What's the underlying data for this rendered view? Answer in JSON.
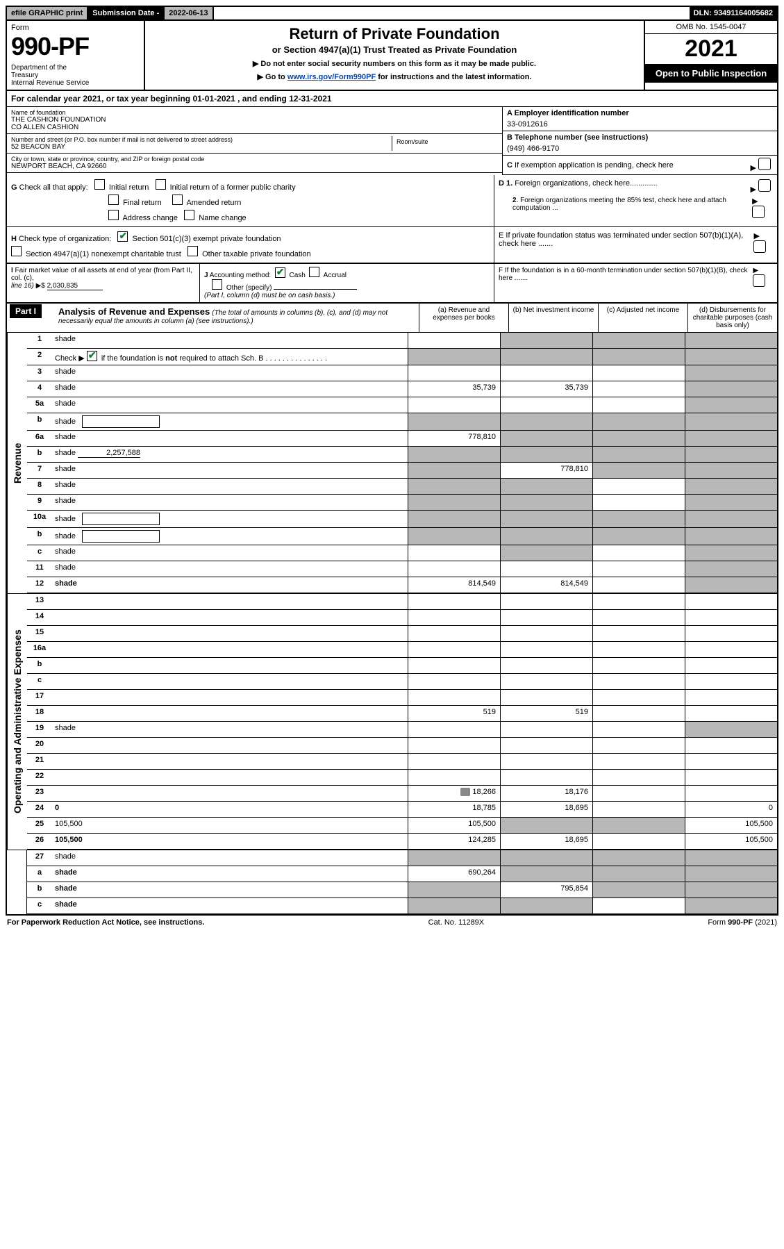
{
  "topbar": {
    "efile": "efile GRAPHIC print",
    "subdate_label": "Submission Date - ",
    "subdate_value": "2022-06-13",
    "dln": "DLN: 93491164005682"
  },
  "header": {
    "form_word": "Form",
    "form_num": "990-PF",
    "dept": "Department of the Treasury\nInternal Revenue Service",
    "title": "Return of Private Foundation",
    "subtitle": "or Section 4947(a)(1) Trust Treated as Private Foundation",
    "instr1": "▶ Do not enter social security numbers on this form as it may be made public.",
    "instr2_pre": "▶ Go to ",
    "instr2_link": "www.irs.gov/Form990PF",
    "instr2_post": " for instructions and the latest information.",
    "omb": "OMB No. 1545-0047",
    "year": "2021",
    "open": "Open to Public Inspection"
  },
  "calyear": {
    "text_pre": "For calendar year 2021, or tax year beginning ",
    "begin": "01-01-2021",
    "text_mid": " , and ending ",
    "end": "12-31-2021"
  },
  "info": {
    "name_label": "Name of foundation",
    "name_value": "THE CASHION FOUNDATION\nCO ALLEN CASHION",
    "addr_label": "Number and street (or P.O. box number if mail is not delivered to street address)",
    "addr_value": "52 BEACON BAY",
    "room_label": "Room/suite",
    "city_label": "City or town, state or province, country, and ZIP or foreign postal code",
    "city_value": "NEWPORT BEACH, CA  92660",
    "a_label": "A Employer identification number",
    "a_value": "33-0912616",
    "b_label": "B Telephone number (see instructions)",
    "b_value": "(949) 466-9170",
    "c_label": "C If exemption application is pending, check here",
    "d1_label": "D 1. Foreign organizations, check here",
    "d2_label": "2. Foreign organizations meeting the 85% test, check here and attach computation ...",
    "e_label": "E   If private foundation status was terminated under section 507(b)(1)(A), check here .......",
    "f_label": "F   If the foundation is in a 60-month termination under section 507(b)(1)(B), check here ......."
  },
  "checks": {
    "g_label": "G Check all that apply:",
    "g_opts": [
      "Initial return",
      "Initial return of a former public charity",
      "Final return",
      "Amended return",
      "Address change",
      "Name change"
    ],
    "h_label": "H Check type of organization:",
    "h_opt1": "Section 501(c)(3) exempt private foundation",
    "h_opt2": "Section 4947(a)(1) nonexempt charitable trust",
    "h_opt3": "Other taxable private foundation",
    "i_label": "I Fair market value of all assets at end of year (from Part II, col. (c), line 16) ▶$ ",
    "i_value": "2,030,835",
    "j_label": "J Accounting method:",
    "j_opt1": "Cash",
    "j_opt2": "Accrual",
    "j_opt3": "Other (specify)",
    "j_note": "(Part I, column (d) must be on cash basis.)"
  },
  "part1": {
    "badge": "Part I",
    "title": "Analysis of Revenue and Expenses",
    "note": "(The total of amounts in columns (b), (c), and (d) may not necessarily equal the amounts in column (a) (see instructions).)",
    "col_a": "(a)  Revenue and expenses per books",
    "col_b": "(b)  Net investment income",
    "col_c": "(c)  Adjusted net income",
    "col_d": "(d)  Disbursements for charitable purposes (cash basis only)"
  },
  "vtabs": {
    "revenue": "Revenue",
    "expenses": "Operating and Administrative Expenses"
  },
  "rows": [
    {
      "n": "1",
      "d": "shade",
      "a": "",
      "b": "shade",
      "c": "shade"
    },
    {
      "n": "2",
      "d": "shade",
      "a": "shade",
      "b": "shade",
      "c": "shade",
      "checked": true
    },
    {
      "n": "3",
      "d": "shade",
      "a": "",
      "b": "",
      "c": ""
    },
    {
      "n": "4",
      "d": "shade",
      "a": "35,739",
      "b": "35,739",
      "c": ""
    },
    {
      "n": "5a",
      "d": "shade",
      "a": "",
      "b": "",
      "c": ""
    },
    {
      "n": "b",
      "d": "shade",
      "a": "shade",
      "b": "shade",
      "c": "shade",
      "inlinebox": true
    },
    {
      "n": "6a",
      "d": "shade",
      "a": "778,810",
      "b": "shade",
      "c": "shade"
    },
    {
      "n": "b",
      "d": "shade",
      "a": "shade",
      "b": "shade",
      "c": "shade",
      "inlineval": "2,257,588"
    },
    {
      "n": "7",
      "d": "shade",
      "a": "shade",
      "b": "778,810",
      "c": "shade"
    },
    {
      "n": "8",
      "d": "shade",
      "a": "shade",
      "b": "shade",
      "c": ""
    },
    {
      "n": "9",
      "d": "shade",
      "a": "shade",
      "b": "shade",
      "c": ""
    },
    {
      "n": "10a",
      "d": "shade",
      "a": "shade",
      "b": "shade",
      "c": "shade",
      "inlinebox": true
    },
    {
      "n": "b",
      "d": "shade",
      "a": "shade",
      "b": "shade",
      "c": "shade",
      "inlinebox": true
    },
    {
      "n": "c",
      "d": "shade",
      "a": "",
      "b": "shade",
      "c": ""
    },
    {
      "n": "11",
      "d": "shade",
      "a": "",
      "b": "",
      "c": ""
    },
    {
      "n": "12",
      "d": "shade",
      "a": "814,549",
      "b": "814,549",
      "c": "",
      "bold": true
    }
  ],
  "exp_rows": [
    {
      "n": "13",
      "d": "",
      "a": "",
      "b": "",
      "c": ""
    },
    {
      "n": "14",
      "d": "",
      "a": "",
      "b": "",
      "c": ""
    },
    {
      "n": "15",
      "d": "",
      "a": "",
      "b": "",
      "c": ""
    },
    {
      "n": "16a",
      "d": "",
      "a": "",
      "b": "",
      "c": ""
    },
    {
      "n": "b",
      "d": "",
      "a": "",
      "b": "",
      "c": ""
    },
    {
      "n": "c",
      "d": "",
      "a": "",
      "b": "",
      "c": ""
    },
    {
      "n": "17",
      "d": "",
      "a": "",
      "b": "",
      "c": ""
    },
    {
      "n": "18",
      "d": "",
      "a": "519",
      "b": "519",
      "c": ""
    },
    {
      "n": "19",
      "d": "shade",
      "a": "",
      "b": "",
      "c": ""
    },
    {
      "n": "20",
      "d": "",
      "a": "",
      "b": "",
      "c": ""
    },
    {
      "n": "21",
      "d": "",
      "a": "",
      "b": "",
      "c": ""
    },
    {
      "n": "22",
      "d": "",
      "a": "",
      "b": "",
      "c": ""
    },
    {
      "n": "23",
      "d": "",
      "a": "18,266",
      "b": "18,176",
      "c": "",
      "icon": true
    },
    {
      "n": "24",
      "d": "0",
      "a": "18,785",
      "b": "18,695",
      "c": "",
      "bold": true
    },
    {
      "n": "25",
      "d": "105,500",
      "a": "105,500",
      "b": "shade",
      "c": "shade"
    },
    {
      "n": "26",
      "d": "105,500",
      "a": "124,285",
      "b": "18,695",
      "c": "",
      "bold": true
    }
  ],
  "net_rows": [
    {
      "n": "27",
      "d": "shade",
      "a": "shade",
      "b": "shade",
      "c": "shade"
    },
    {
      "n": "a",
      "d": "shade",
      "a": "690,264",
      "b": "shade",
      "c": "shade",
      "bold": true
    },
    {
      "n": "b",
      "d": "shade",
      "a": "shade",
      "b": "795,854",
      "c": "shade",
      "bold": true
    },
    {
      "n": "c",
      "d": "shade",
      "a": "shade",
      "b": "shade",
      "c": "",
      "bold": true
    }
  ],
  "footer": {
    "left": "For Paperwork Reduction Act Notice, see instructions.",
    "center": "Cat. No. 11289X",
    "right": "Form 990-PF (2021)"
  },
  "colors": {
    "shade": "#b8b8b8",
    "black": "#000000",
    "link": "#0645ad",
    "check_green": "#1a7a3a"
  }
}
